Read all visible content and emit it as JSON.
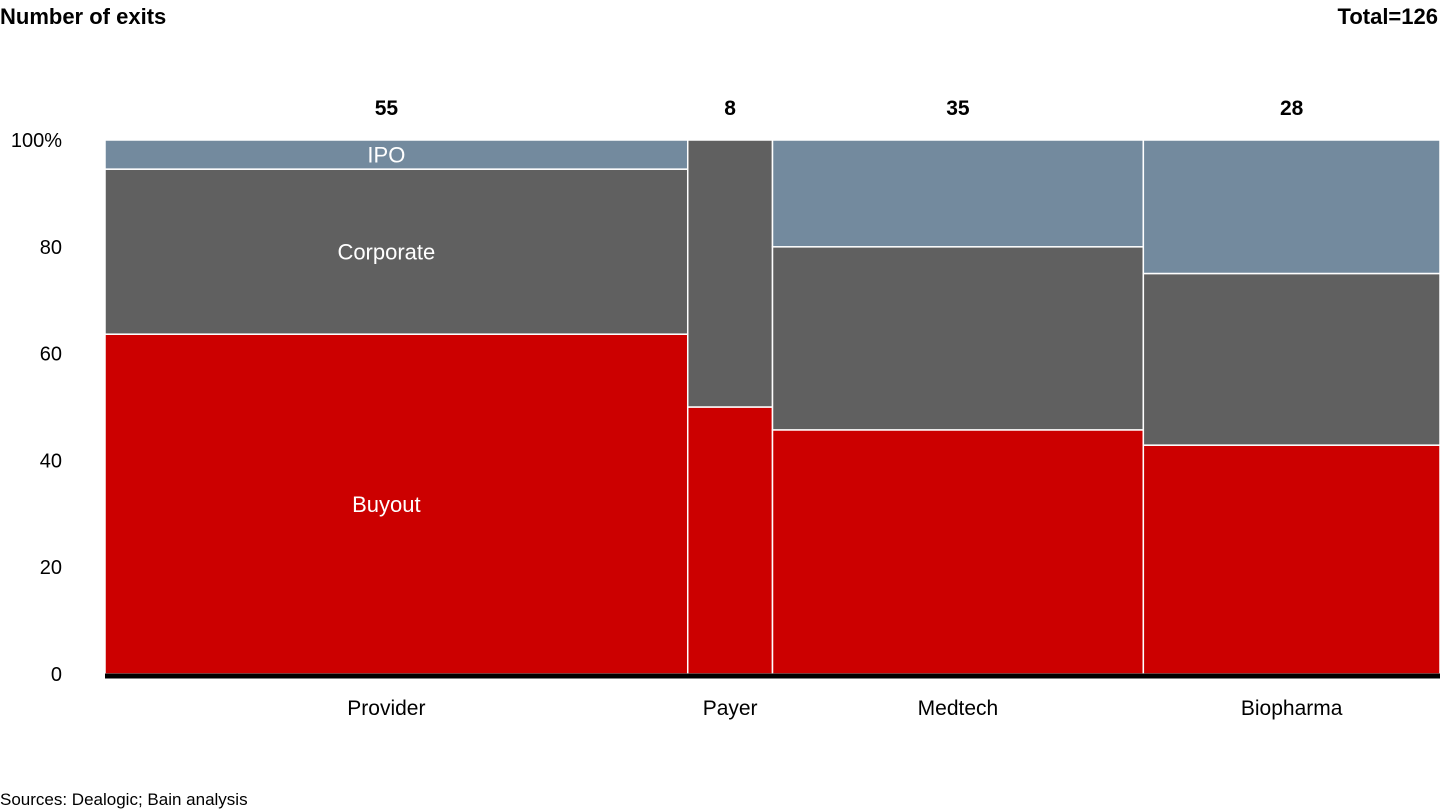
{
  "header": {
    "title": "Number of exits",
    "total": "Total=126"
  },
  "footer": {
    "sources": "Sources: Dealogic; Bain analysis"
  },
  "chart_data": {
    "type": "marimekko",
    "title": "Number of exits",
    "total_label": "Total=126",
    "ylabel": "",
    "ylim": [
      0,
      100
    ],
    "y_ticks": [
      "0",
      "20",
      "40",
      "60",
      "80",
      "100%"
    ],
    "categories": [
      "Provider",
      "Payer",
      "Medtech",
      "Biopharma"
    ],
    "category_totals": [
      55,
      8,
      35,
      28
    ],
    "series": [
      {
        "name": "Buyout",
        "color": "#cc0000",
        "values": [
          35,
          4,
          16,
          12
        ]
      },
      {
        "name": "Corporate",
        "color": "#606060",
        "values": [
          17,
          4,
          12,
          9
        ]
      },
      {
        "name": "IPO",
        "color": "#738a9e",
        "values": [
          3,
          0,
          7,
          7
        ]
      }
    ],
    "segment_labels_in_column": "Provider"
  }
}
